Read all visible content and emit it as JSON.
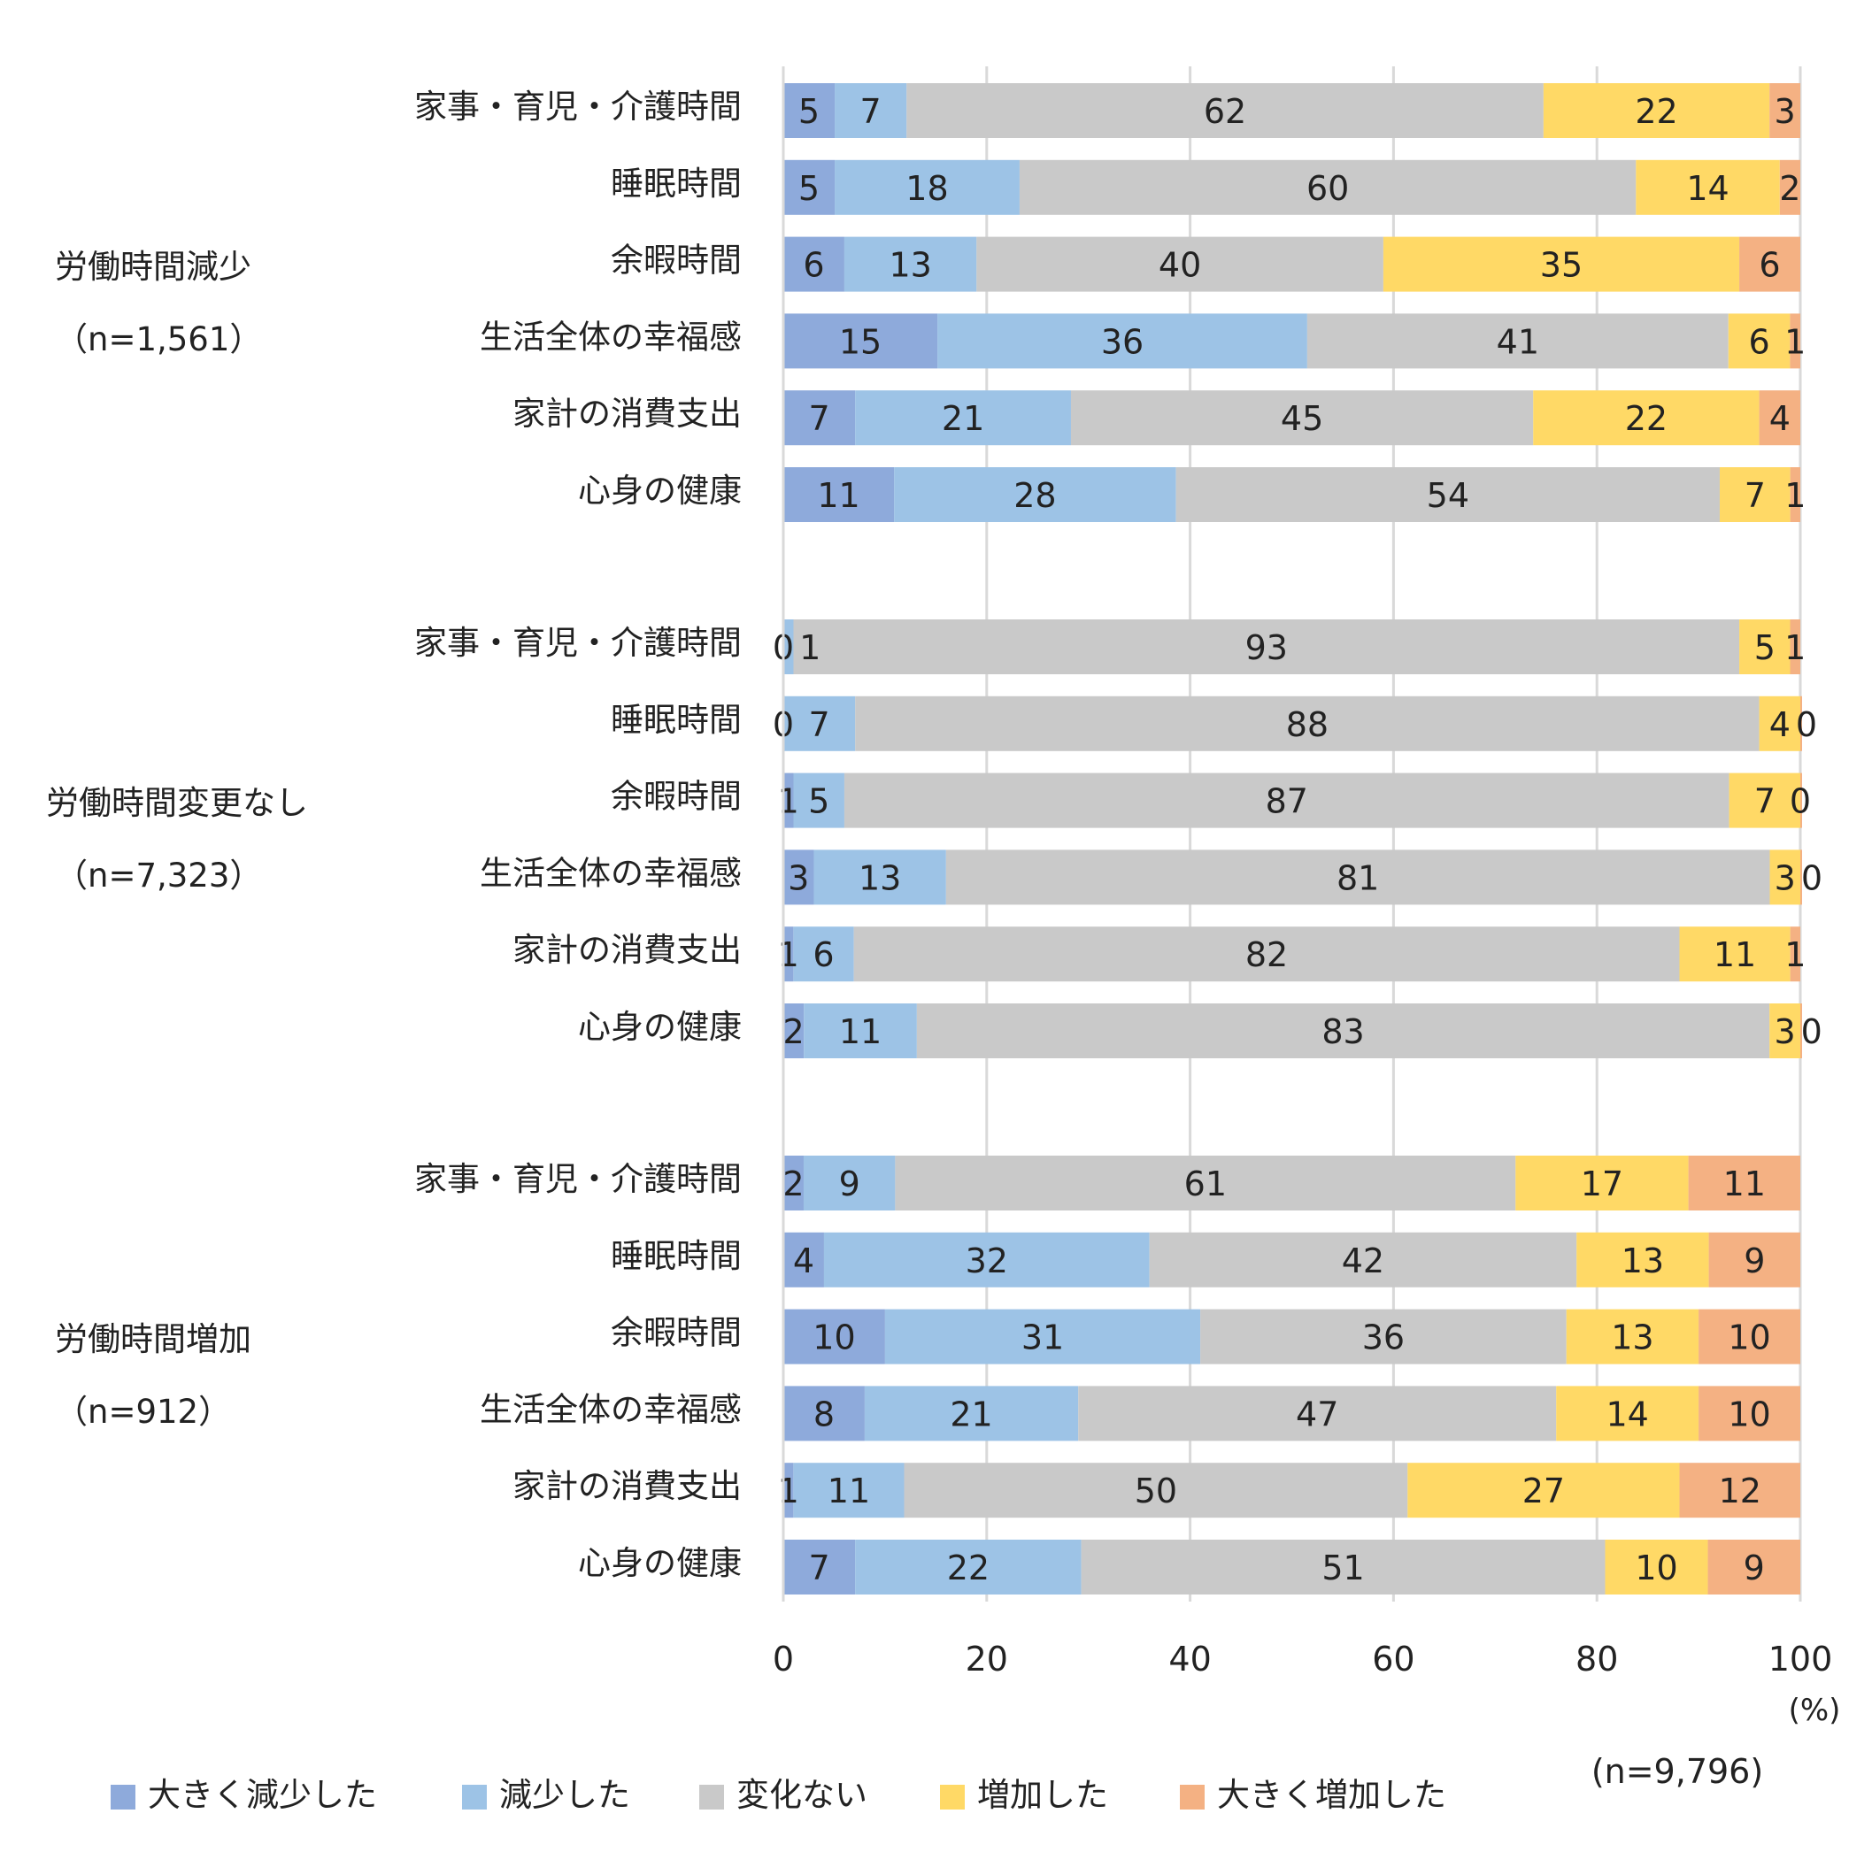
{
  "chart_data": {
    "type": "bar",
    "orientation": "horizontal",
    "stacked": true,
    "xlim": [
      0,
      100
    ],
    "xticks": [
      "0",
      "20",
      "40",
      "60",
      "80",
      "100"
    ],
    "x_unit": "(%)",
    "total_n": "(n=9,796)",
    "grid": true,
    "legend_position": "bottom",
    "series": [
      {
        "name": "大きく減少した",
        "color": "#8eaadb"
      },
      {
        "name": "減少した",
        "color": "#9dc3e6"
      },
      {
        "name": "変化ない",
        "color": "#c9c9c9"
      },
      {
        "name": "増加した",
        "color": "#ffd966"
      },
      {
        "name": "大きく増加した",
        "color": "#f4b183"
      }
    ],
    "groups": [
      {
        "label": "労働時間減少",
        "n": "（n=1,561）",
        "rows": [
          {
            "category": "家事・育児・介護時間",
            "values": [
              5,
              7,
              62,
              22,
              3
            ]
          },
          {
            "category": "睡眠時間",
            "values": [
              5,
              18,
              60,
              14,
              2
            ]
          },
          {
            "category": "余暇時間",
            "values": [
              6,
              13,
              40,
              35,
              6
            ]
          },
          {
            "category": "生活全体の幸福感",
            "values": [
              15,
              36,
              41,
              6,
              1
            ]
          },
          {
            "category": "家計の消費支出",
            "values": [
              7,
              21,
              45,
              22,
              4
            ]
          },
          {
            "category": "心身の健康",
            "values": [
              11,
              28,
              54,
              7,
              1
            ]
          }
        ]
      },
      {
        "label": "労働時間変更なし",
        "n": "（n=7,323）",
        "rows": [
          {
            "category": "家事・育児・介護時間",
            "values": [
              0,
              1,
              93,
              5,
              1
            ]
          },
          {
            "category": "睡眠時間",
            "values": [
              0,
              7,
              88,
              4,
              0
            ]
          },
          {
            "category": "余暇時間",
            "values": [
              1,
              5,
              87,
              7,
              0
            ]
          },
          {
            "category": "生活全体の幸福感",
            "values": [
              3,
              13,
              81,
              3,
              0
            ]
          },
          {
            "category": "家計の消費支出",
            "values": [
              1,
              6,
              82,
              11,
              1
            ]
          },
          {
            "category": "心身の健康",
            "values": [
              2,
              11,
              83,
              3,
              0
            ]
          }
        ]
      },
      {
        "label": "労働時間増加",
        "n": "（n=912）",
        "rows": [
          {
            "category": "家事・育児・介護時間",
            "values": [
              2,
              9,
              61,
              17,
              11
            ]
          },
          {
            "category": "睡眠時間",
            "values": [
              4,
              32,
              42,
              13,
              9
            ]
          },
          {
            "category": "余暇時間",
            "values": [
              10,
              31,
              36,
              13,
              10
            ]
          },
          {
            "category": "生活全体の幸福感",
            "values": [
              8,
              21,
              47,
              14,
              10
            ]
          },
          {
            "category": "家計の消費支出",
            "values": [
              1,
              11,
              50,
              27,
              12
            ]
          },
          {
            "category": "心身の健康",
            "values": [
              7,
              22,
              51,
              10,
              9
            ]
          }
        ]
      }
    ]
  }
}
